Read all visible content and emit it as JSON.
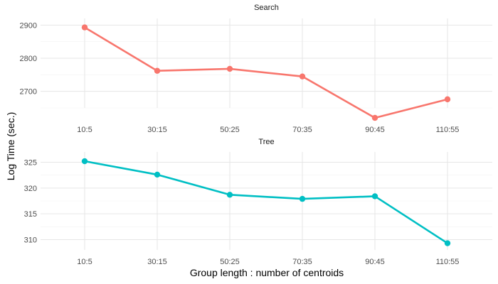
{
  "chart_data": {
    "type": "line",
    "xlabel": "Group length : number of centroids",
    "ylabel": "Log Time (sec.)",
    "categories": [
      "10:5",
      "30:15",
      "50:25",
      "70:35",
      "90:45",
      "110:55"
    ],
    "grid": true,
    "panels": [
      {
        "strip": "Search",
        "color": "#F8766D",
        "yticks": [
          2700,
          2800,
          2900
        ],
        "ylim": [
          2650,
          2920
        ],
        "values": [
          2893,
          2762,
          2768,
          2745,
          2620,
          2676
        ]
      },
      {
        "strip": "Tree",
        "color": "#00BFC4",
        "yticks": [
          310,
          315,
          320,
          325
        ],
        "ylim": [
          308,
          327
        ],
        "values": [
          325.2,
          322.6,
          318.7,
          317.9,
          318.4,
          309.3
        ]
      }
    ]
  }
}
